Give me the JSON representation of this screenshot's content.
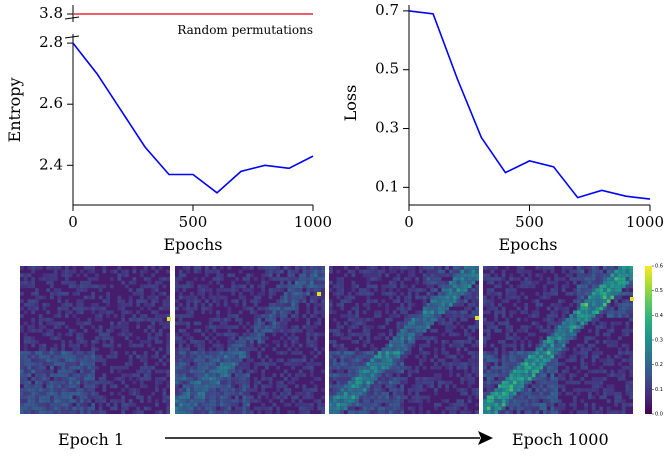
{
  "chart_data": [
    {
      "type": "line",
      "ylabel": "Entropy",
      "xlabel": "Epochs",
      "xlim": [
        0,
        1000
      ],
      "ylim": [
        2.27,
        2.82
      ],
      "broken_axis": {
        "upper_value": 3.8,
        "upper_tick": "3.8"
      },
      "xticks": [
        0,
        500,
        1000
      ],
      "yticks": [
        2.4,
        2.6,
        2.8
      ],
      "series": [
        {
          "x": [
            0,
            100,
            200,
            300,
            400,
            500,
            600,
            700,
            800,
            900,
            1000
          ],
          "y": [
            2.8,
            2.7,
            2.58,
            2.46,
            2.37,
            2.37,
            2.31,
            2.38,
            2.4,
            2.39,
            2.43
          ],
          "color": "#0000ff"
        }
      ],
      "reference_line": {
        "label": "Random permutations",
        "value": 3.8,
        "color": "#e8283c"
      },
      "grid": false
    },
    {
      "type": "line",
      "ylabel": "Loss",
      "xlabel": "Epochs",
      "xlim": [
        0,
        1000
      ],
      "ylim": [
        0.04,
        0.72
      ],
      "xticks": [
        0,
        500,
        1000
      ],
      "yticks": [
        0.1,
        0.3,
        0.5,
        0.7
      ],
      "series": [
        {
          "x": [
            0,
            100,
            200,
            300,
            400,
            500,
            600,
            700,
            800,
            900,
            1000
          ],
          "y": [
            0.7,
            0.69,
            0.47,
            0.27,
            0.15,
            0.19,
            0.17,
            0.065,
            0.09,
            0.07,
            0.06
          ],
          "color": "#0000ff"
        }
      ],
      "grid": false
    },
    {
      "type": "heatmap",
      "panels": 4,
      "colormap": "viridis",
      "vmin": 0.0,
      "vmax": 0.6,
      "colorbar_ticks": [
        "0.0",
        "0.1",
        "0.2",
        "0.3",
        "0.4",
        "0.5",
        "0.6"
      ]
    }
  ],
  "bottom_arrow": {
    "start_label": "Epoch 1",
    "end_label": "Epoch 1000"
  },
  "colors": {
    "line": "#0000ff",
    "reference": "#e8283c"
  }
}
